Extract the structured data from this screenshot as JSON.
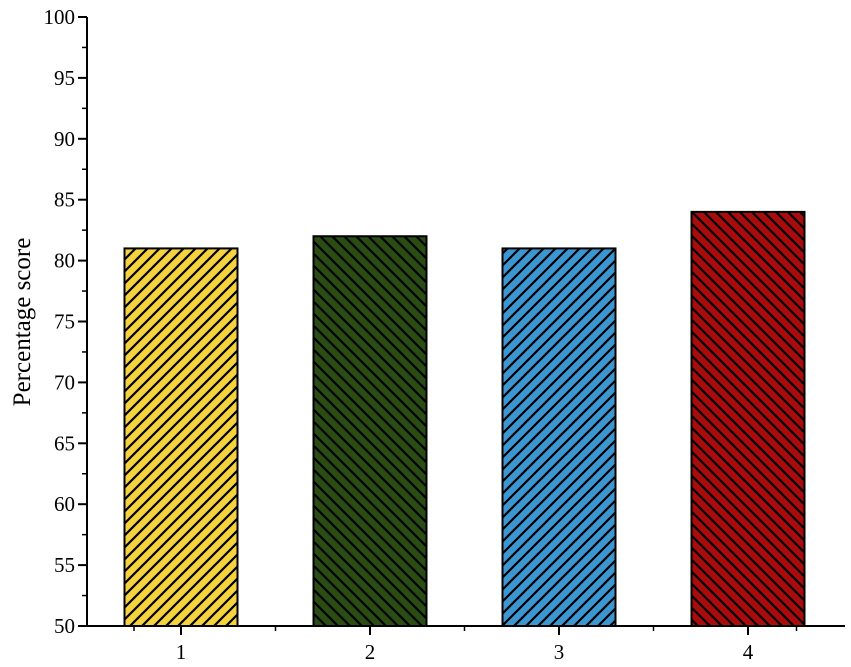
{
  "chart_data": {
    "type": "bar",
    "categories": [
      "1",
      "2",
      "3",
      "4"
    ],
    "values": [
      81,
      82,
      81,
      84
    ],
    "colors": [
      "#f5d33f",
      "#2a4d14",
      "#3c96d2",
      "#a80c0c"
    ],
    "pattern": "diagonal-hatch",
    "title": "",
    "xlabel": "",
    "ylabel": "Percentage score",
    "ylim": [
      50,
      100
    ],
    "yticks": [
      50,
      55,
      60,
      65,
      70,
      75,
      80,
      85,
      90,
      95,
      100
    ],
    "grid": false,
    "legend": "none"
  }
}
